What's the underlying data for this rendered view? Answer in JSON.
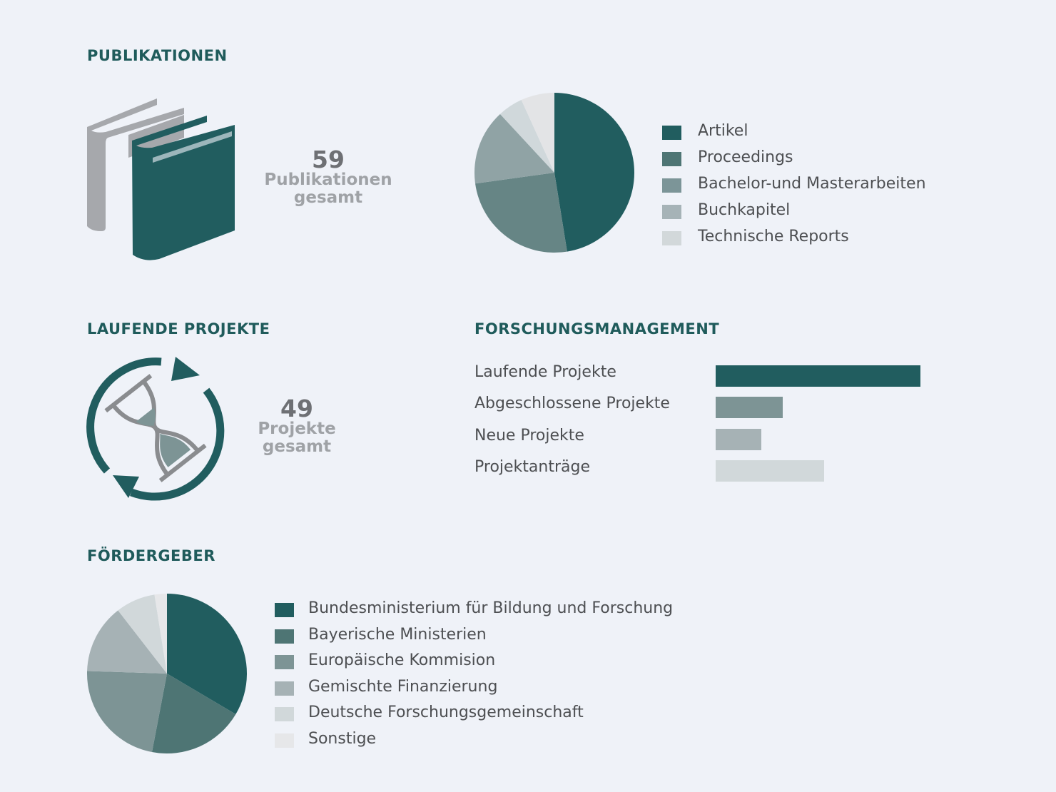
{
  "sections": {
    "publications": "PUBLIKATIONEN",
    "projects": "LAUFENDE PROJEKTE",
    "management": "FORSCHUNGSMANAGEMENT",
    "funders": "FÖRDERGEBER"
  },
  "publications_summary": {
    "number": "59",
    "line1": "Publikationen",
    "line2": "gesamt"
  },
  "projects_summary": {
    "number": "49",
    "line1": "Projekte",
    "line2": "gesamt"
  },
  "icons": {
    "publications": "books-icon",
    "projects": "hourglass-cycle-icon"
  },
  "chart_data": [
    {
      "type": "pie",
      "categories": [
        "Artikel",
        "Proceedings",
        "Bachelor-und Masterarbeiten",
        "Buchkapitel",
        "Technische Reports"
      ],
      "values": [
        47.5,
        25.4,
        15.3,
        5.1,
        6.8
      ],
      "colors": [
        "#215d5f",
        "#668585",
        "#90a3a5",
        "#d0d8db",
        "#e3e4e6"
      ],
      "legend_colors": [
        "#215d5f",
        "#4e7574",
        "#7c9598",
        "#a6b3b7",
        "#d2d8da"
      ]
    },
    {
      "type": "bar",
      "orientation": "horizontal",
      "categories": [
        "Laufende Projekte",
        "Abgeschlossene Projekte",
        "Neue Projekte",
        "Projektanträge"
      ],
      "values": [
        49,
        16,
        11,
        26
      ],
      "colors": [
        "#215d5f",
        "#7d9495",
        "#a6b2b5",
        "#d1d8da"
      ]
    },
    {
      "type": "pie",
      "categories": [
        "Bundesministerium für Bildung und Forschung",
        "Bayerische Ministerien",
        "Europäische Kommision",
        "Gemischte Finanzierung",
        "Deutsche Forschungsgemeinschaft",
        "Sonstige"
      ],
      "values": [
        33.5,
        19.5,
        22.5,
        14,
        8,
        2.5
      ],
      "colors": [
        "#215d5f",
        "#4e7574",
        "#7d9495",
        "#a6b2b5",
        "#d1d8da",
        "#e6e7e9"
      ]
    }
  ]
}
